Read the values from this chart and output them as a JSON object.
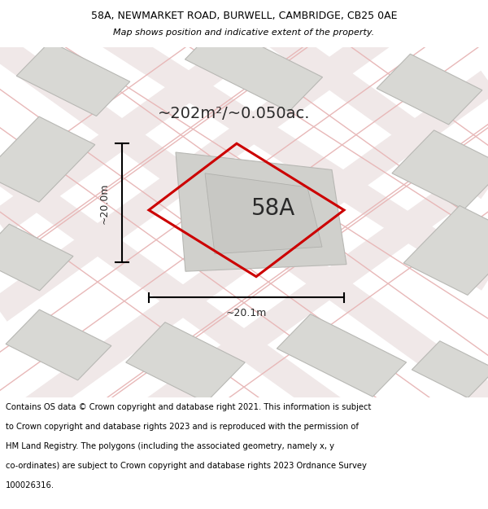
{
  "title_line1": "58A, NEWMARKET ROAD, BURWELL, CAMBRIDGE, CB25 0AE",
  "title_line2": "Map shows position and indicative extent of the property.",
  "area_label": "~202m²/~0.050ac.",
  "property_label": "58A",
  "dim_horizontal": "~20.1m",
  "dim_vertical": "~20.0m",
  "footer_lines": [
    "Contains OS data © Crown copyright and database right 2021. This information is subject",
    "to Crown copyright and database rights 2023 and is reproduced with the permission of",
    "HM Land Registry. The polygons (including the associated geometry, namely x, y",
    "co-ordinates) are subject to Crown copyright and database rights 2023 Ordnance Survey",
    "100026316."
  ],
  "map_bg": "#f2f2ee",
  "building_fill": "#d8d8d4",
  "building_edge": "#b8b8b4",
  "road_fill": "#f0e8e8",
  "road_edge": "#e8b8b8",
  "property_polygon_color": "#cc0000",
  "dim_line_color": "#000000",
  "footer_bg": "#ffffff",
  "title_bg": "#ffffff",
  "title_fontsize": 9,
  "subtitle_fontsize": 8,
  "area_fontsize": 14,
  "label_fontsize": 20,
  "dim_fontsize": 9,
  "footer_fontsize": 7.2
}
